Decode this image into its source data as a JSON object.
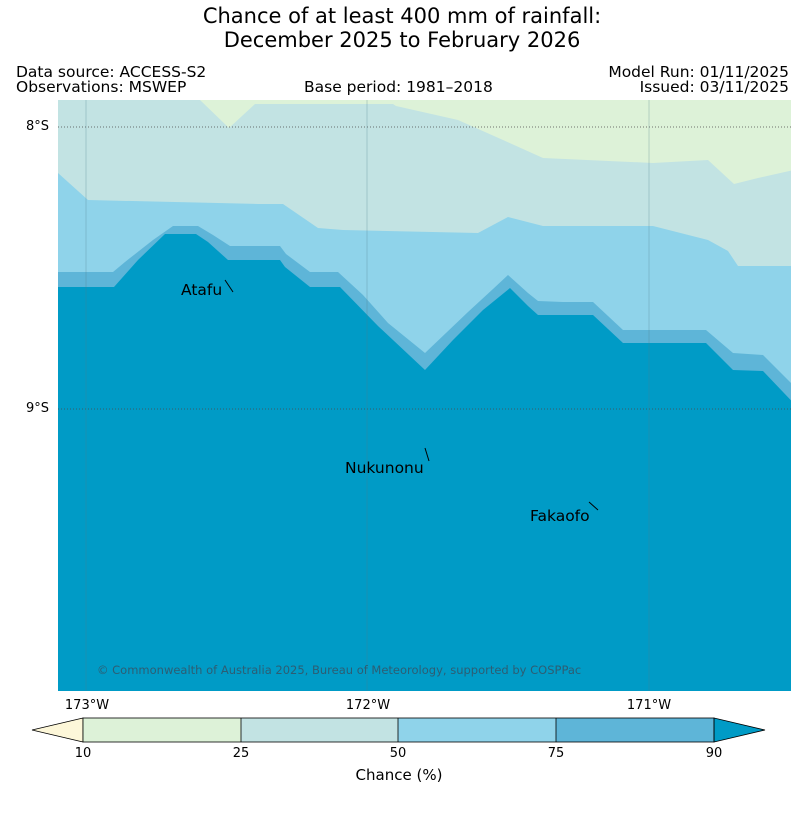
{
  "title": {
    "line1": "Chance of at least 400 mm of rainfall:",
    "line2": "December 2025 to February 2026"
  },
  "meta": {
    "data_source": "Data source: ACCESS-S2",
    "observations": "Observations: MSWEP",
    "base_period": "Base period: 1981–2018",
    "model_run": "Model Run: 01/11/2025",
    "issued": "Issued: 03/11/2025"
  },
  "map": {
    "latitude_labels": [
      "8°S",
      "9°S"
    ],
    "longitude_labels": [
      "173°W",
      "172°W",
      "171°W"
    ],
    "places": [
      "Atafu",
      "Nukunonu",
      "Fakaofo"
    ],
    "copyright": "© Commonwealth of Australia 2025, Bureau of Meteorology, supported by COSPPac"
  },
  "legend": {
    "label": "Chance (%)",
    "ticks": [
      "10",
      "25",
      "50",
      "75",
      "90"
    ],
    "categories": [
      {
        "range": "<10",
        "color": "#fdf7d9"
      },
      {
        "range": "10–25",
        "color": "#ddf2d8"
      },
      {
        "range": "25–50",
        "color": "#c2e3e3"
      },
      {
        "range": "50–75",
        "color": "#8fd3ea"
      },
      {
        "range": "75–90",
        "color": "#5eb5d8"
      },
      {
        "range": ">90",
        "color": "#009bc6"
      }
    ]
  },
  "colors": {
    "band_10_25": "#ddf2d8",
    "band_25_50": "#c2e3e3",
    "band_50_75": "#8fd3ea",
    "band_75_90": "#5eb5d8",
    "band_90_plus": "#009bc6"
  }
}
